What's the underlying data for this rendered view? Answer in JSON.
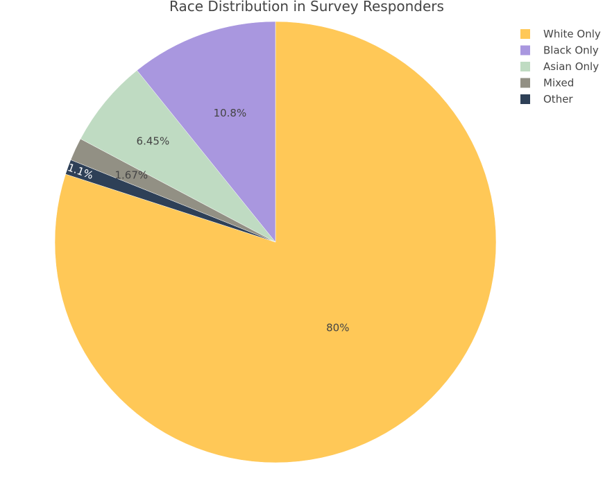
{
  "chart_data": {
    "type": "pie",
    "title": "Race Distribution in Survey Responders",
    "labels": [
      "White Only",
      "Black Only",
      "Asian Only",
      "Mixed",
      "Other"
    ],
    "values": [
      80,
      10.8,
      6.45,
      1.67,
      1.1
    ],
    "value_labels": [
      "80%",
      "10.8%",
      "6.45%",
      "1.67%",
      "1.1%"
    ],
    "colors": [
      "#FFC857",
      "#A997DF",
      "#BFDBC2",
      "#929084",
      "#2E4057"
    ],
    "start_angle": "12 o'clock",
    "direction": "clockwise",
    "legend_position": "top-right"
  }
}
